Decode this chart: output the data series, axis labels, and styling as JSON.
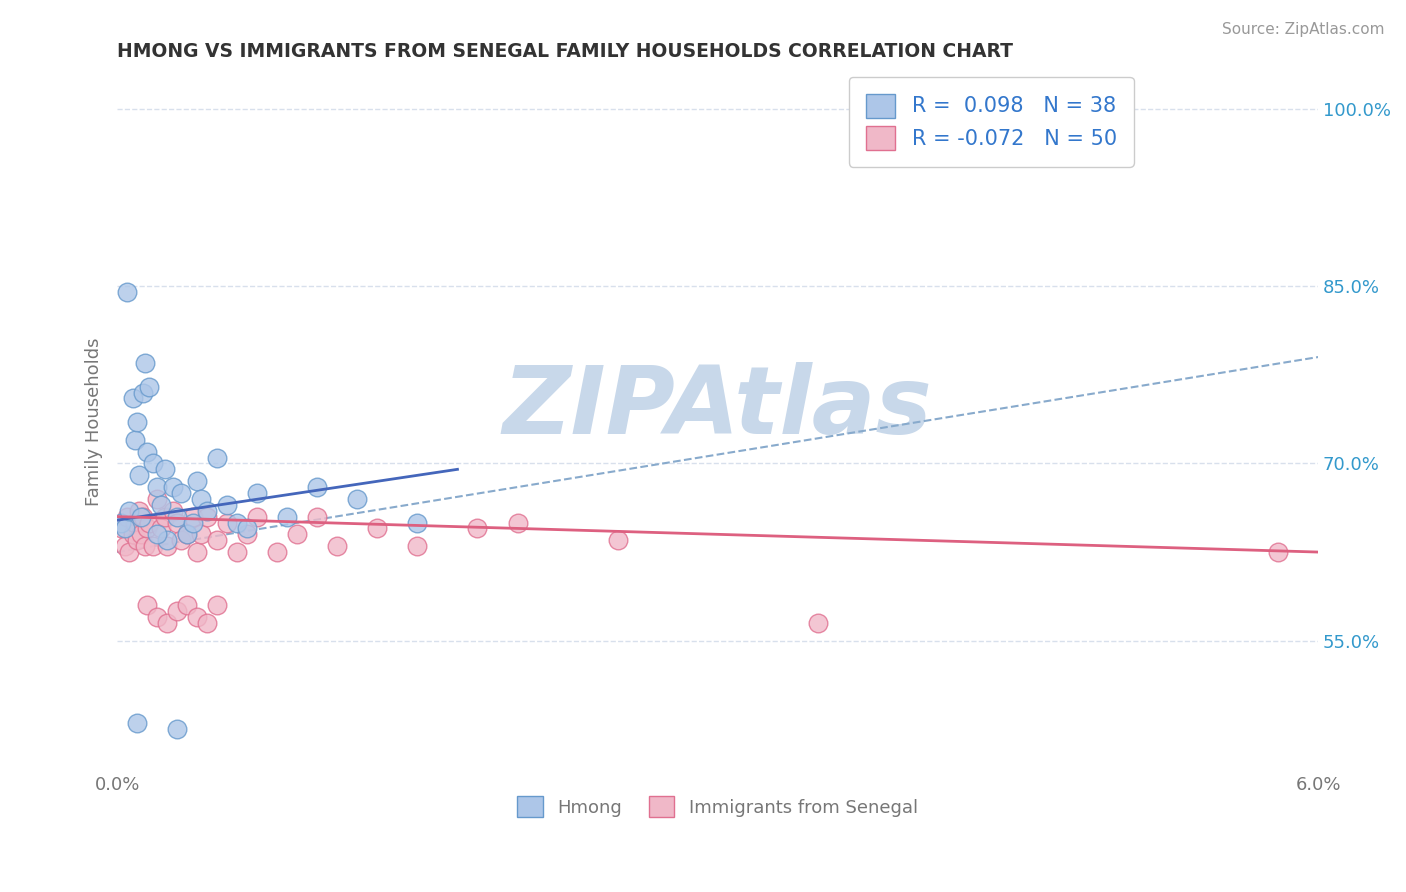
{
  "title": "HMONG VS IMMIGRANTS FROM SENEGAL FAMILY HOUSEHOLDS CORRELATION CHART",
  "source": "Source: ZipAtlas.com",
  "ylabel": "Family Households",
  "right_yticks": [
    55.0,
    70.0,
    85.0,
    100.0
  ],
  "xlim": [
    0.0,
    6.0
  ],
  "ylim": [
    44.0,
    103.0
  ],
  "hmong_R": 0.098,
  "hmong_N": 38,
  "senegal_R": -0.072,
  "senegal_N": 50,
  "background_color": "#ffffff",
  "watermark_text": "ZIPAtlas",
  "watermark_color": "#c8d8ea",
  "blue_scatter_face": "#adc6e8",
  "blue_scatter_edge": "#6699cc",
  "pink_scatter_face": "#f0b8c8",
  "pink_scatter_edge": "#e07090",
  "trendline_blue_solid": "#4466bb",
  "trendline_blue_dash": "#88aacc",
  "trendline_pink": "#dd6080",
  "grid_color": "#d8e0ec",
  "legend_text_color": "#3377cc",
  "axis_text_color": "#777777",
  "right_tick_color": "#3399cc",
  "hmong_x": [
    0.02,
    0.04,
    0.05,
    0.06,
    0.08,
    0.09,
    0.1,
    0.11,
    0.12,
    0.13,
    0.14,
    0.15,
    0.16,
    0.18,
    0.2,
    0.22,
    0.24,
    0.25,
    0.28,
    0.3,
    0.32,
    0.35,
    0.38,
    0.4,
    0.42,
    0.45,
    0.5,
    0.55,
    0.6,
    0.65,
    0.7,
    0.85,
    1.0,
    1.2,
    1.5,
    0.1,
    0.3,
    0.2
  ],
  "hmong_y": [
    65.0,
    64.5,
    84.5,
    66.0,
    75.5,
    72.0,
    73.5,
    69.0,
    65.5,
    76.0,
    78.5,
    71.0,
    76.5,
    70.0,
    68.0,
    66.5,
    69.5,
    63.5,
    68.0,
    65.5,
    67.5,
    64.0,
    65.0,
    68.5,
    67.0,
    66.0,
    70.5,
    66.5,
    65.0,
    64.5,
    67.5,
    65.5,
    68.0,
    67.0,
    65.0,
    48.0,
    47.5,
    64.0
  ],
  "senegal_x": [
    0.02,
    0.04,
    0.05,
    0.06,
    0.08,
    0.09,
    0.1,
    0.11,
    0.12,
    0.13,
    0.14,
    0.15,
    0.16,
    0.18,
    0.2,
    0.22,
    0.24,
    0.25,
    0.28,
    0.3,
    0.32,
    0.35,
    0.38,
    0.4,
    0.42,
    0.45,
    0.5,
    0.55,
    0.6,
    0.65,
    0.7,
    0.8,
    0.9,
    1.0,
    1.1,
    1.3,
    1.5,
    1.8,
    2.0,
    2.5,
    3.5,
    5.8,
    0.15,
    0.2,
    0.25,
    0.3,
    0.35,
    0.4,
    0.45,
    0.5
  ],
  "senegal_y": [
    64.5,
    63.0,
    65.5,
    62.5,
    64.0,
    65.0,
    63.5,
    66.0,
    64.0,
    65.5,
    63.0,
    64.5,
    65.0,
    63.0,
    67.0,
    64.5,
    65.5,
    63.0,
    66.0,
    65.0,
    63.5,
    64.0,
    65.5,
    62.5,
    64.0,
    65.5,
    63.5,
    65.0,
    62.5,
    64.0,
    65.5,
    62.5,
    64.0,
    65.5,
    63.0,
    64.5,
    63.0,
    64.5,
    65.0,
    63.5,
    56.5,
    62.5,
    58.0,
    57.0,
    56.5,
    57.5,
    58.0,
    57.0,
    56.5,
    58.0
  ],
  "hmong_trend_x0": 0.0,
  "hmong_trend_y0": 65.2,
  "hmong_trend_x1": 1.7,
  "hmong_trend_y1": 69.5,
  "senegal_trend_x0": 0.0,
  "senegal_trend_y0": 65.5,
  "senegal_trend_x1": 6.0,
  "senegal_trend_y1": 62.5,
  "dash_trend_x0": 0.0,
  "dash_trend_y0": 62.5,
  "dash_trend_x1": 6.0,
  "dash_trend_y1": 79.0
}
